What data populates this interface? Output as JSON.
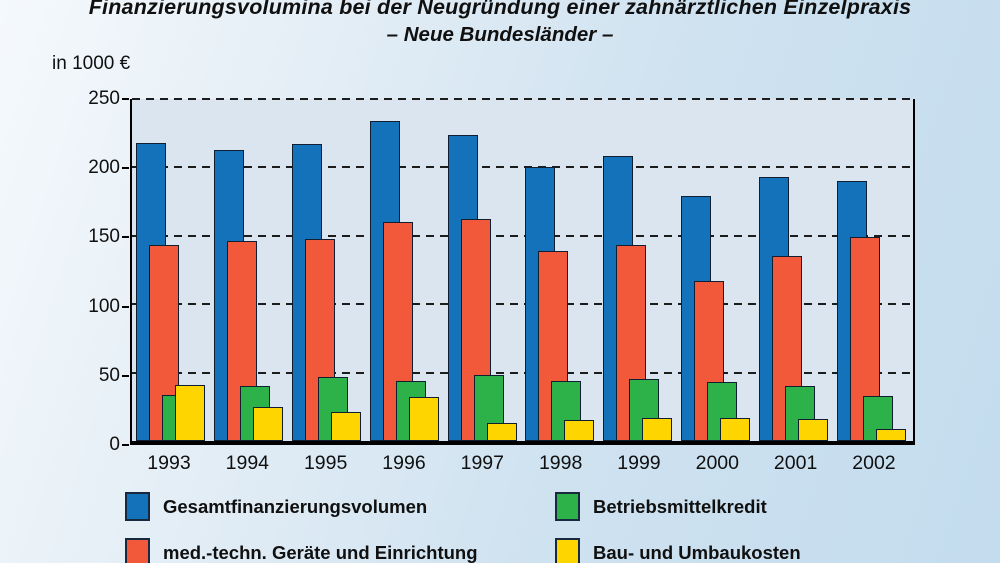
{
  "title": {
    "line1": "Finanzierungsvolumina bei der Neugründung einer zahnärztlichen Einzelpraxis",
    "line2": "– Neue Bundesländer –"
  },
  "unit_label": "in 1000 €",
  "chart_data": {
    "type": "bar",
    "title": "Finanzierungsvolumina bei der Neugründung einer zahnärztlichen Einzelpraxis",
    "subtitle": "– Neue Bundesländer –",
    "ylabel": "in 1000 €",
    "ylim": [
      0,
      250
    ],
    "yticks": [
      0,
      50,
      100,
      150,
      200,
      250
    ],
    "grid": "horizontal dashed black",
    "legend_position": "bottom",
    "bar_style": "overlapping offset bars, draw order back-to-front",
    "categories": [
      "1993",
      "1994",
      "1995",
      "1996",
      "1997",
      "1998",
      "1999",
      "2000",
      "2001",
      "2002"
    ],
    "series": [
      {
        "name": "Gesamtfinanzierungsvolumen",
        "color": "#1472ba",
        "values": [
          218,
          213,
          217,
          234,
          224,
          200,
          208,
          179,
          193,
          190
        ]
      },
      {
        "name": "med.-techn. Geräte und Einrichtung",
        "color": "#f2583a",
        "values": [
          143,
          146,
          148,
          160,
          162,
          139,
          143,
          117,
          135,
          149
        ]
      },
      {
        "name": "Betriebsmittelkredit",
        "color": "#2db249",
        "values": [
          34,
          40,
          47,
          44,
          48,
          44,
          45,
          43,
          40,
          33
        ]
      },
      {
        "name": "Bau- und Umbaukosten",
        "color": "#ffd500",
        "values": [
          41,
          25,
          21,
          32,
          13,
          15,
          17,
          17,
          16,
          9
        ]
      }
    ]
  },
  "legend": {
    "columns": [
      {
        "items": [
          {
            "label": "Gesamtfinanzierungsvolumen",
            "color": "#1472ba"
          },
          {
            "label": "med.-techn. Geräte und Einrichtung",
            "color": "#f2583a"
          }
        ]
      },
      {
        "items": [
          {
            "label": "Betriebsmittelkredit",
            "color": "#2db249"
          },
          {
            "label": "Bau- und Umbaukosten",
            "color": "#ffd500"
          }
        ]
      }
    ]
  },
  "colors": {
    "plot_background": "#dbe5ef",
    "page_background_start": "#f5f9fc",
    "page_background_end": "#c3dcee",
    "axis": "#000000",
    "text": "#101010"
  }
}
